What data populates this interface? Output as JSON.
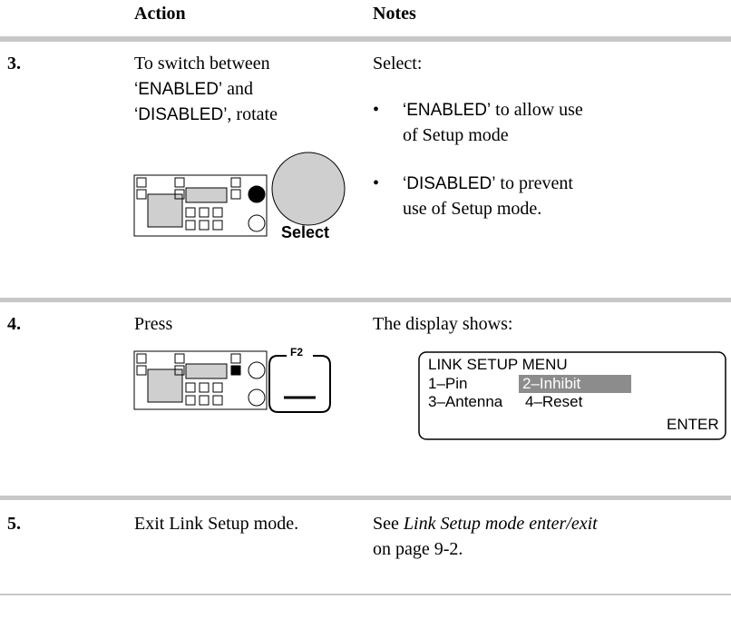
{
  "header": {
    "action": "Action",
    "notes": "Notes"
  },
  "steps": [
    {
      "number": "3.",
      "action": {
        "line_1": "To switch between",
        "enabled": "‘ENABLED’",
        "and": " and",
        "disabled": "‘DISABLED’",
        "rotate": ", rotate"
      },
      "control_label": "Select",
      "notes": {
        "intro": "Select:",
        "bullets": [
          {
            "keyword": "‘ENABLED’",
            "text_1": " to allow use",
            "text_2": "of Setup mode"
          },
          {
            "keyword": "‘DISABLED’",
            "text_1": " to prevent",
            "text_2": "use of Setup mode."
          }
        ]
      }
    },
    {
      "number": "4.",
      "action": {
        "line_1": "Press"
      },
      "control_label": "F2",
      "notes": {
        "intro": "The display shows:",
        "display": {
          "title": "LINK SETUP MENU",
          "item_1": "1–Pin",
          "item_2": "2–Inhibit",
          "item_3": "3–Antenna",
          "item_4": "4–Reset",
          "enter": "ENTER"
        }
      }
    },
    {
      "number": "5.",
      "action": {
        "line_1": "Exit Link Setup mode."
      },
      "notes": {
        "see": "See ",
        "link": "Link Setup mode enter/exit",
        "page": "on page 9-2."
      }
    }
  ]
}
